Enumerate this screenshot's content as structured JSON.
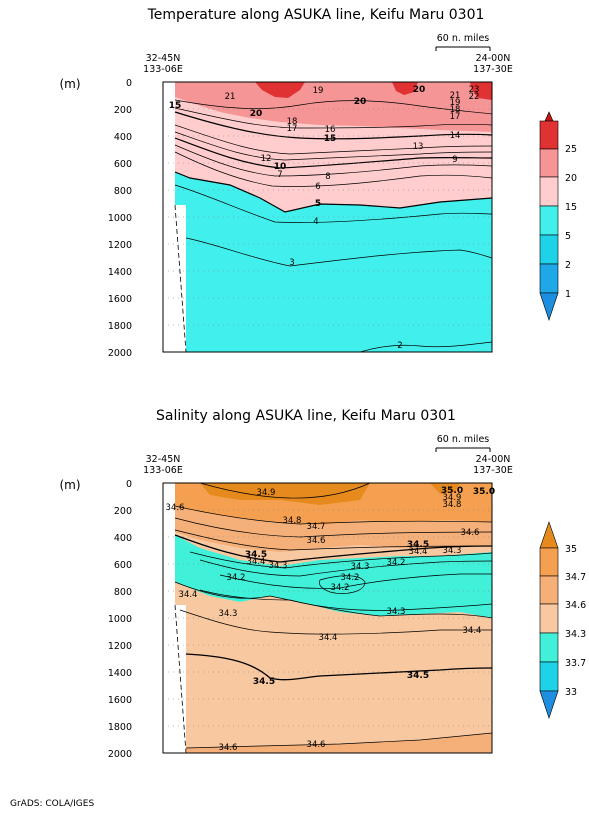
{
  "chart_data": [
    {
      "type": "heatmap",
      "title": "Temperature along ASUKA line, Keifu Maru 0301",
      "ylabel": "(m)",
      "ylim": [
        2000,
        0
      ],
      "yticks": [
        0,
        200,
        400,
        600,
        800,
        1000,
        1200,
        1400,
        1600,
        1800,
        2000
      ],
      "top_left_label": [
        "32-45N",
        "133-06E"
      ],
      "top_right_label": [
        "24-00N",
        "137-30E"
      ],
      "scale_label": "60 n. miles",
      "colorbar": {
        "levels": [
          1,
          2,
          5,
          15,
          20,
          25
        ],
        "colors": [
          "#1e8ee0",
          "#1ed2e8",
          "#41f0ed",
          "#ffcdcd",
          "#f59595",
          "#e03232",
          "#c81414"
        ]
      },
      "contour_labels": [
        "21",
        "20",
        "19",
        "20",
        "20",
        "21",
        "23",
        "22",
        "15",
        "19",
        "18",
        "17",
        "18",
        "17",
        "16",
        "15",
        "14",
        "13",
        "12",
        "10",
        "9",
        "8",
        "7",
        "6",
        "5",
        "4",
        "3",
        "2"
      ]
    },
    {
      "type": "heatmap",
      "title": "Salinity along ASUKA line, Keifu Maru 0301",
      "ylabel": "(m)",
      "ylim": [
        2000,
        0
      ],
      "yticks": [
        0,
        200,
        400,
        600,
        800,
        1000,
        1200,
        1400,
        1600,
        1800,
        2000
      ],
      "top_left_label": [
        "32-45N",
        "133-06E"
      ],
      "top_right_label": [
        "24-00N",
        "137-30E"
      ],
      "scale_label": "60 n. miles",
      "colorbar": {
        "levels": [
          33,
          33.7,
          34.3,
          34.6,
          34.7,
          35
        ],
        "colors": [
          "#1e8ee0",
          "#1ed2e8",
          "#41f0d8",
          "#f8c8a0",
          "#f5b07a",
          "#f5a050",
          "#e68a1e"
        ]
      },
      "contour_labels": [
        "34.9",
        "35.0",
        "34.9",
        "34.8",
        "35.0",
        "34.6",
        "34.8",
        "34.7",
        "34.6",
        "34.5",
        "34.4",
        "34.5",
        "34.4",
        "34.3",
        "34.6",
        "34.3",
        "34.2",
        "34.3",
        "34.2",
        "34.2",
        "34.2",
        "34.4",
        "34.3",
        "34.3",
        "34.4",
        "34.4",
        "34.5",
        "34.5",
        "34.6",
        "34.6"
      ]
    }
  ],
  "footer": "GrADS: COLA/IGES"
}
